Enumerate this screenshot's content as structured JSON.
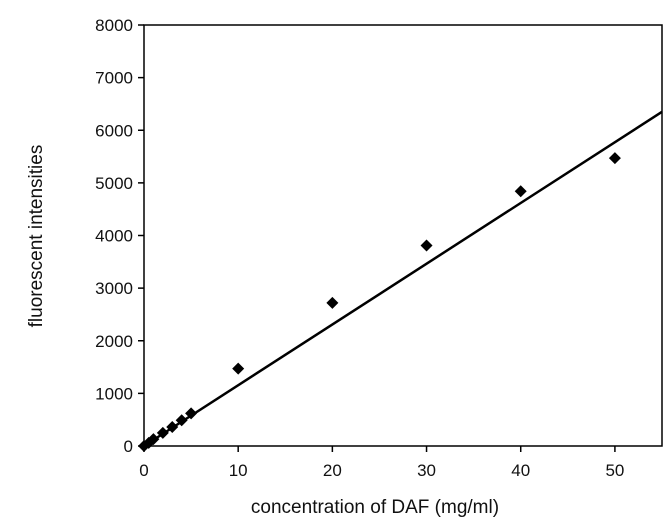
{
  "chart_data": {
    "type": "scatter",
    "title": "",
    "xlabel": "concentration of DAF (mg/ml)",
    "ylabel": "fluorescent intensities",
    "xlim": [
      0,
      55
    ],
    "ylim": [
      0,
      8000
    ],
    "x_ticks": [
      0,
      10,
      20,
      30,
      40,
      50
    ],
    "y_ticks": [
      0,
      1000,
      2000,
      3000,
      4000,
      5000,
      6000,
      7000,
      8000
    ],
    "grid": false,
    "legend": "none",
    "marker_color": "#000000",
    "series": [
      {
        "marker": "diamond",
        "points": [
          {
            "x": 0,
            "y": 0
          },
          {
            "x": 0.5,
            "y": 60
          },
          {
            "x": 1,
            "y": 130
          },
          {
            "x": 2,
            "y": 250
          },
          {
            "x": 3,
            "y": 360
          },
          {
            "x": 4,
            "y": 490
          },
          {
            "x": 5,
            "y": 620
          },
          {
            "x": 10,
            "y": 1470
          },
          {
            "x": 20,
            "y": 2720
          },
          {
            "x": 30,
            "y": 3810
          },
          {
            "x": 40,
            "y": 4840
          },
          {
            "x": 50,
            "y": 5470
          }
        ]
      }
    ],
    "trendline": {
      "type": "linear",
      "from": {
        "x": 0,
        "y": 0
      },
      "to": {
        "x": 55,
        "y": 6350
      }
    }
  }
}
